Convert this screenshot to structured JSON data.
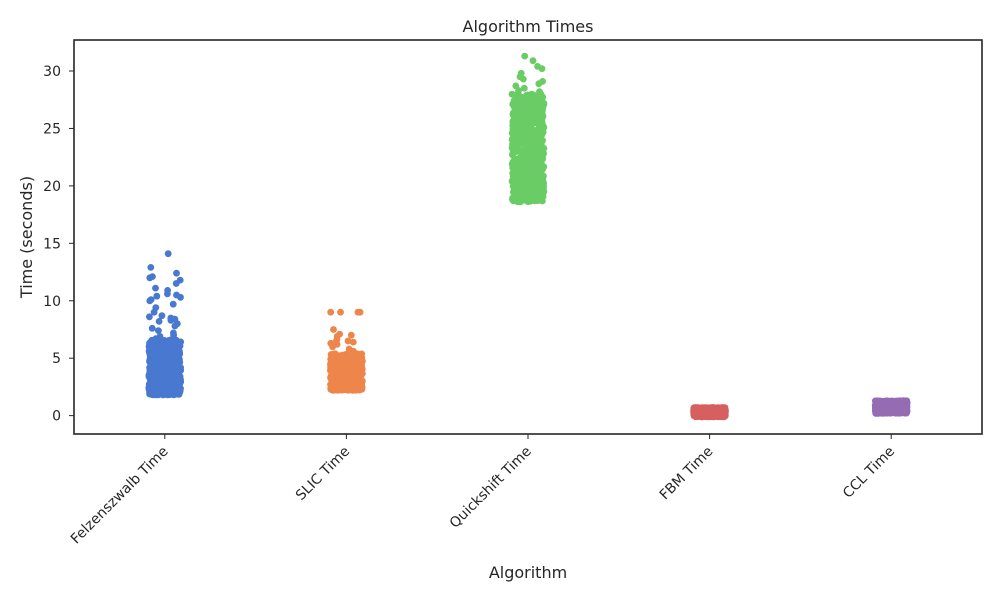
{
  "chart_data": {
    "type": "scatter",
    "subtype": "strip",
    "title": "Algorithm Times",
    "xlabel": "Algorithm",
    "ylabel": "Time (seconds)",
    "ylim": [
      -1.6,
      32.7
    ],
    "yticks": [
      0,
      5,
      10,
      15,
      20,
      25,
      30
    ],
    "grid": false,
    "legend": "none",
    "categories": [
      "Felzenszwalb Time",
      "SLIC Time",
      "Quickshift Time",
      "FBM Time",
      "CCL Time"
    ],
    "series": [
      {
        "category": "Felzenszwalb Time",
        "color": "#4878d0",
        "bulk_range": [
          1.8,
          6.6
        ],
        "outliers": [
          14.1,
          12.9,
          12.4,
          12.1,
          12.0,
          11.8,
          11.5,
          11.1,
          10.9,
          10.6,
          10.5,
          10.4,
          10.3,
          10.1,
          10.0,
          9.7,
          9.4,
          9.0,
          8.7,
          8.6,
          8.5,
          8.4,
          8.3,
          8.2,
          8.0,
          7.8,
          7.6,
          7.4,
          7.2,
          7.0,
          6.9,
          6.7
        ]
      },
      {
        "category": "SLIC Time",
        "color": "#ee854a",
        "bulk_range": [
          2.2,
          5.4
        ],
        "outliers": [
          9.0,
          9.0,
          9.0,
          9.0,
          7.5,
          7.1,
          7.0,
          6.9,
          6.6,
          6.5,
          6.4,
          6.4,
          6.3,
          6.2,
          6.0,
          5.8,
          5.6
        ]
      },
      {
        "category": "Quickshift Time",
        "color": "#6acc64",
        "bulk_range": [
          18.6,
          28.0
        ],
        "outliers": [
          31.3,
          30.9,
          30.4,
          30.2,
          29.8,
          29.5,
          29.3,
          29.1,
          28.9,
          28.7,
          28.5,
          28.3,
          28.2
        ]
      },
      {
        "category": "FBM Time",
        "color": "#d65f5f",
        "bulk_range": [
          -0.1,
          0.7
        ],
        "outliers": []
      },
      {
        "category": "CCL Time",
        "color": "#956cb4",
        "bulk_range": [
          0.2,
          1.3
        ],
        "outliers": []
      }
    ]
  }
}
